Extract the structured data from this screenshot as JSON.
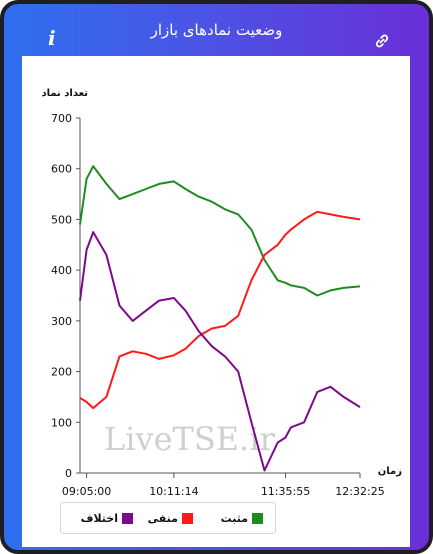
{
  "header": {
    "title": "وضعیت نمادهای بازار",
    "info_label": "i"
  },
  "icons": {
    "info": "info-icon",
    "link": "link-icon"
  },
  "watermark": "LiveTSE.ir",
  "colors": {
    "positive": "#1e8c1e",
    "negative": "#ff1a1a",
    "difference": "#7d0a8c"
  },
  "chart_data": {
    "type": "line",
    "ylabel": "تعداد نماد",
    "xlabel": "زمان",
    "ylim": [
      0,
      700
    ],
    "yticks": [
      0,
      100,
      200,
      300,
      400,
      500,
      600,
      700
    ],
    "xticks": [
      "09:05:00",
      "10:11:14",
      "11:35:55",
      "12:32:25"
    ],
    "x": [
      "09:00:00",
      "09:05:00",
      "09:10:00",
      "09:20:00",
      "09:30:00",
      "09:40:00",
      "09:50:00",
      "10:00:00",
      "10:11:14",
      "10:20:00",
      "10:30:00",
      "10:40:00",
      "10:50:00",
      "11:00:00",
      "11:10:00",
      "11:20:00",
      "11:30:00",
      "11:35:55",
      "11:40:00",
      "11:50:00",
      "12:00:00",
      "12:10:00",
      "12:20:00",
      "12:32:25"
    ],
    "series": [
      {
        "name": "مثبت",
        "color": "#1e8c1e",
        "values": [
          490,
          580,
          605,
          570,
          540,
          550,
          560,
          570,
          575,
          560,
          545,
          535,
          520,
          510,
          480,
          420,
          380,
          375,
          370,
          365,
          350,
          360,
          365,
          368
        ]
      },
      {
        "name": "منفی",
        "color": "#ff1a1a",
        "values": [
          148,
          140,
          128,
          150,
          230,
          240,
          235,
          225,
          232,
          245,
          270,
          285,
          290,
          310,
          380,
          430,
          450,
          470,
          480,
          500,
          515,
          510,
          505,
          500
        ]
      },
      {
        "name": "اختلاف",
        "color": "#7d0a8c",
        "values": [
          340,
          440,
          475,
          430,
          330,
          300,
          320,
          340,
          345,
          320,
          280,
          250,
          230,
          200,
          100,
          5,
          60,
          70,
          90,
          100,
          160,
          170,
          150,
          130
        ]
      }
    ],
    "legend": [
      "اختلاف",
      "منفی",
      "مثبت"
    ],
    "legend_position": "bottom-left",
    "grid": false
  }
}
